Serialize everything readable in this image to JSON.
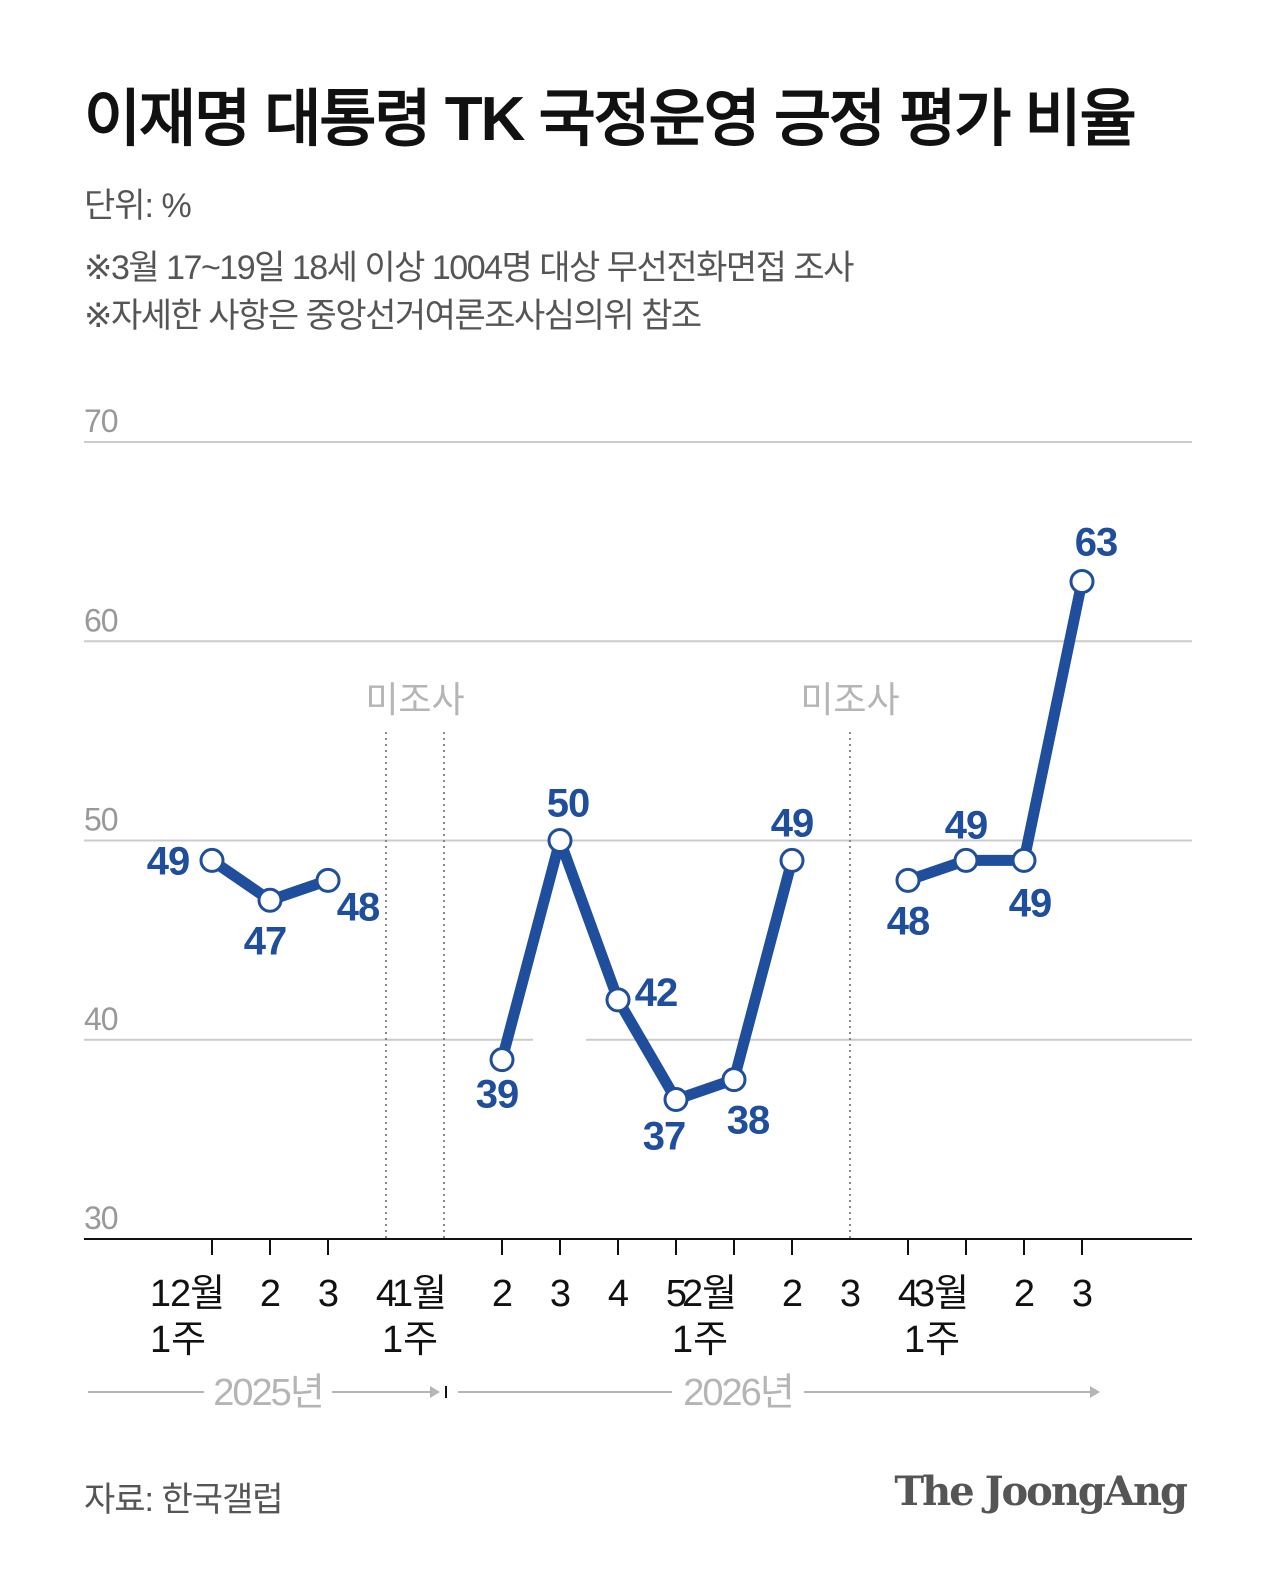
{
  "title": "이재명 대통령 TK 국정운영 긍정 평가 비율",
  "unit": "단위: %",
  "notes": [
    "※3월 17~19일 18세 이상 1004명 대상 무선전화면접 조사",
    "※자세한 사항은 중앙선거여론조사심의위 참조"
  ],
  "source": "자료: 한국갤럽",
  "logo": "The JoongAng",
  "colors": {
    "line": "#1f4e9c",
    "grid": "#cccccc",
    "muted": "#b5b5b5"
  },
  "chart_data": {
    "type": "line",
    "title": "이재명 대통령 TK 국정운영 긍정 평가 비율",
    "ylabel": "%",
    "ylim": [
      30,
      70
    ],
    "yticks": [
      30,
      40,
      50,
      60,
      70
    ],
    "categories": [
      {
        "top": "12월",
        "bottom": "1주"
      },
      {
        "top": "2",
        "bottom": ""
      },
      {
        "top": "3",
        "bottom": ""
      },
      {
        "top": "4",
        "bottom": ""
      },
      {
        "top": "1월",
        "bottom": "1주"
      },
      {
        "top": "2",
        "bottom": ""
      },
      {
        "top": "3",
        "bottom": ""
      },
      {
        "top": "4",
        "bottom": ""
      },
      {
        "top": "5",
        "bottom": ""
      },
      {
        "top": "2월",
        "bottom": "1주"
      },
      {
        "top": "2",
        "bottom": ""
      },
      {
        "top": "3",
        "bottom": ""
      },
      {
        "top": "4",
        "bottom": ""
      },
      {
        "top": "3월",
        "bottom": "1주"
      },
      {
        "top": "2",
        "bottom": ""
      },
      {
        "top": "3",
        "bottom": ""
      }
    ],
    "values": [
      49,
      47,
      48,
      null,
      null,
      39,
      50,
      42,
      37,
      38,
      49,
      null,
      48,
      49,
      49,
      63
    ],
    "no_survey_label": "미조사",
    "no_survey_periods": [
      [
        3,
        4
      ],
      [
        11,
        11
      ]
    ],
    "years": [
      "2025년",
      "2026년"
    ],
    "grid": true
  }
}
